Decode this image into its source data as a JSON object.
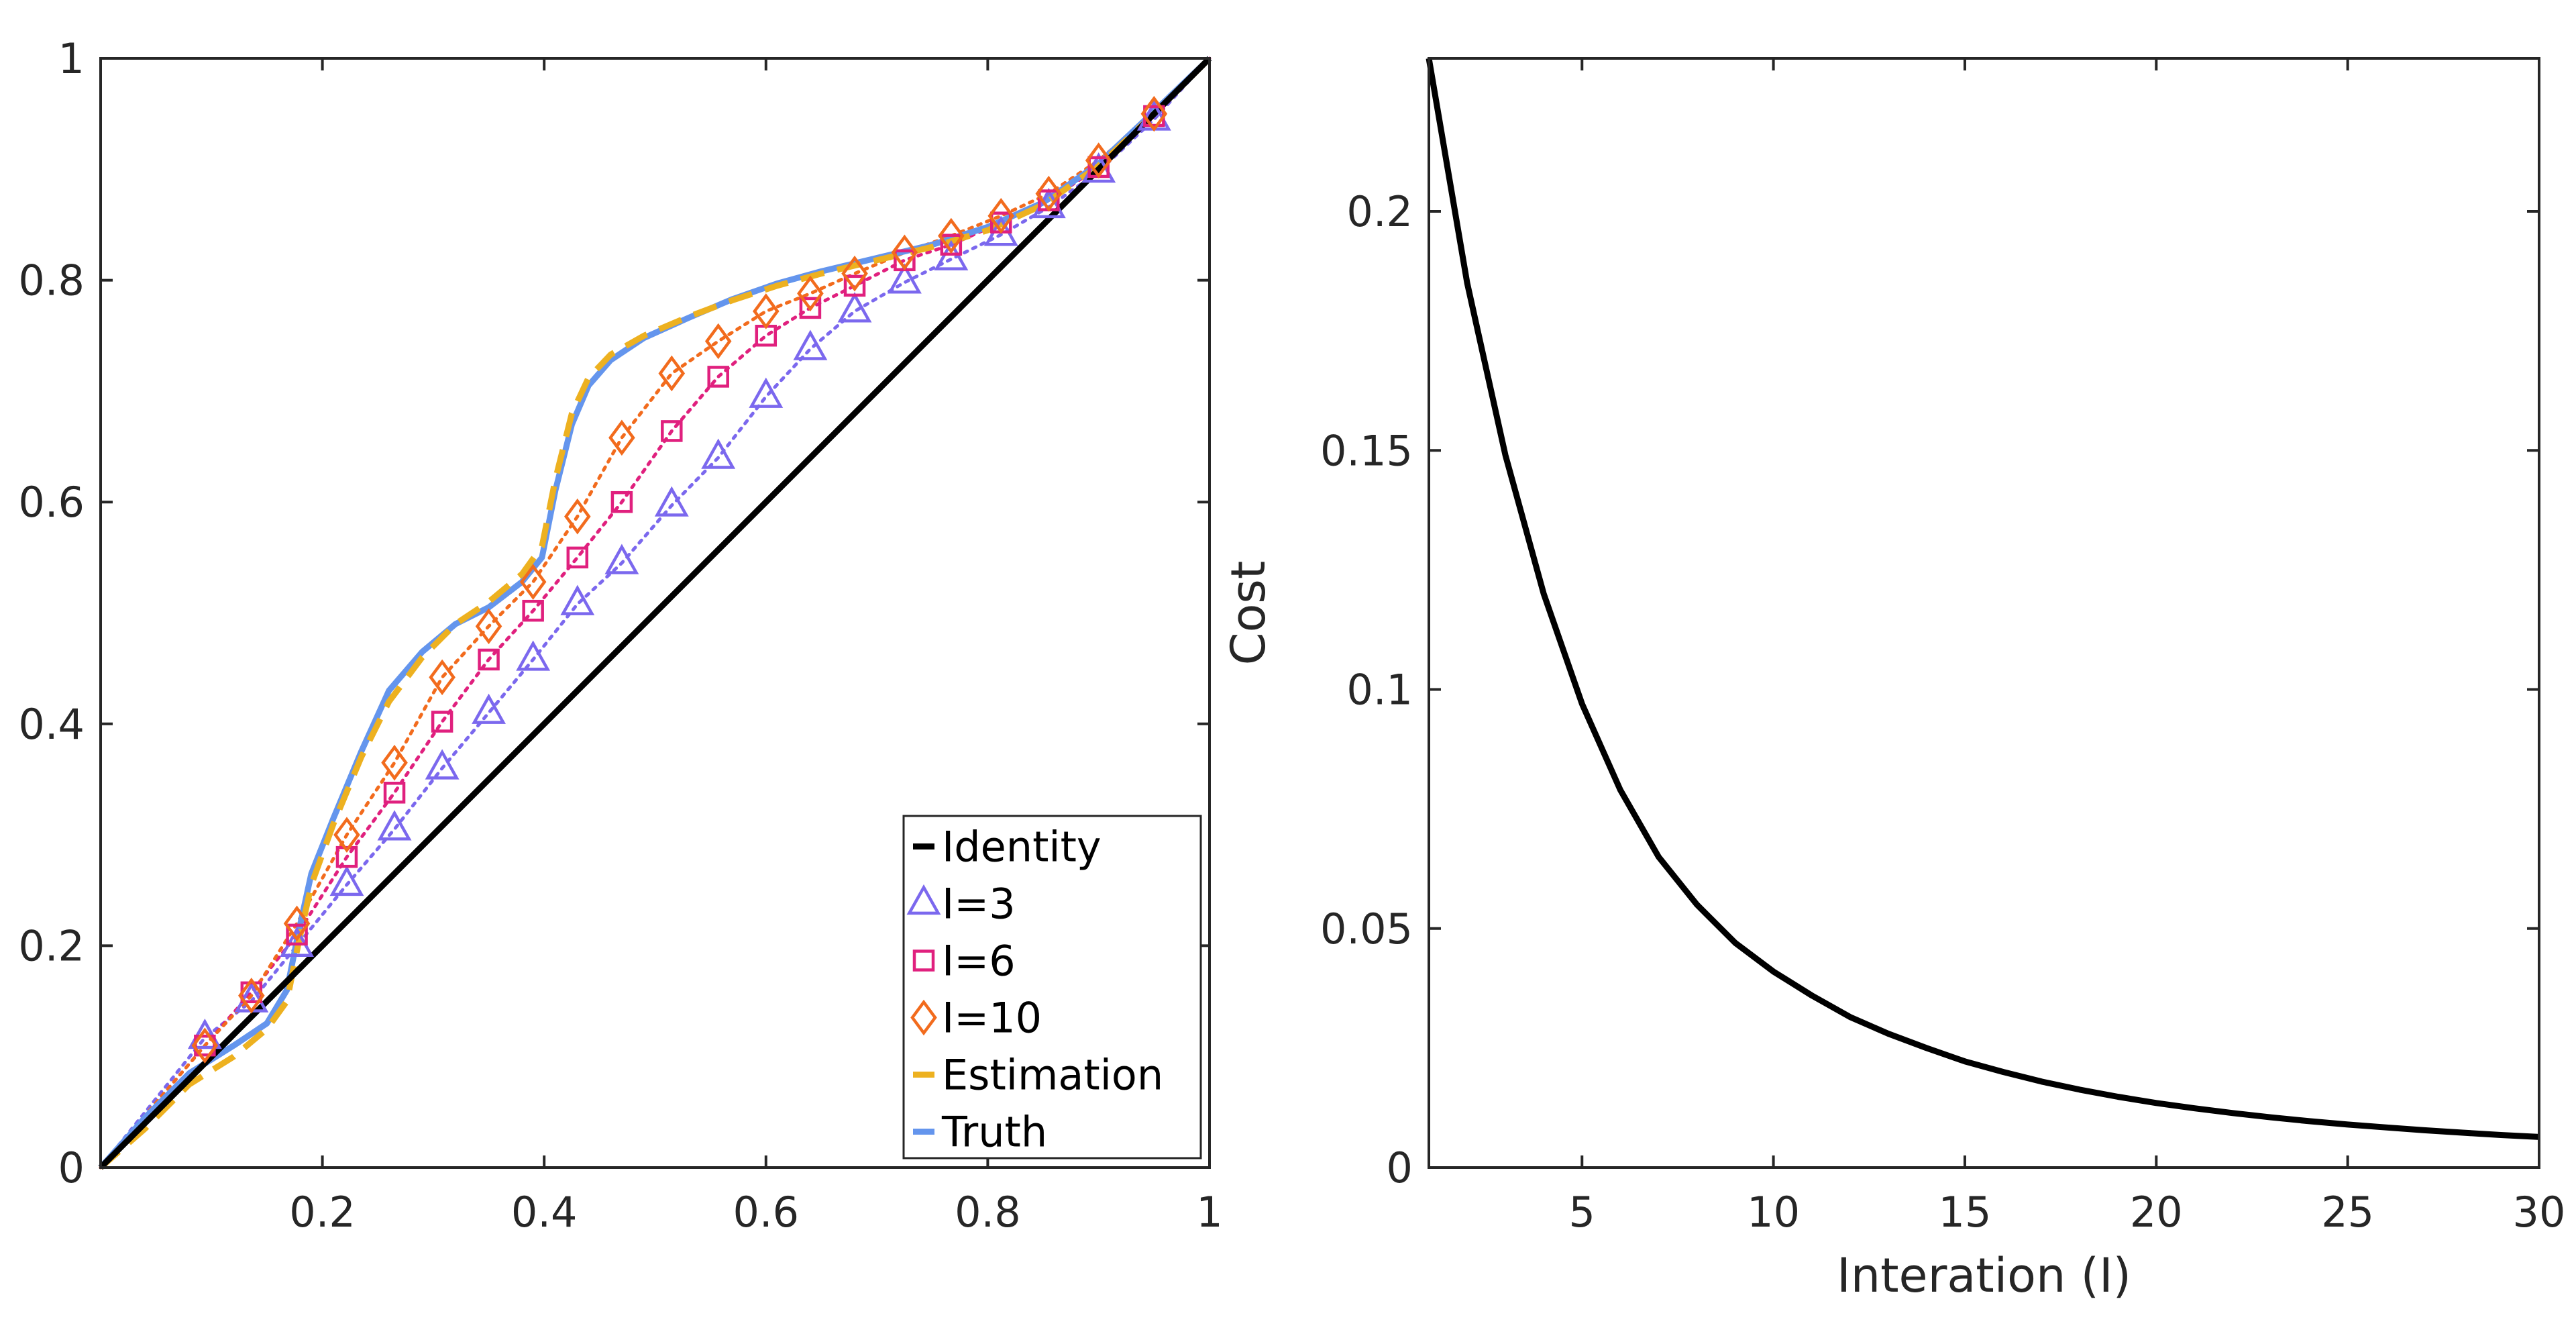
{
  "chart_data": [
    {
      "type": "line",
      "title": "",
      "xlabel": "",
      "ylabel": "",
      "xlim": [
        0,
        1
      ],
      "ylim": [
        0,
        1
      ],
      "x_ticks": [
        0.2,
        0.4,
        0.6,
        0.8,
        1
      ],
      "x_tick_labels": [
        "0.2",
        "0.4",
        "0.6",
        "0.8",
        "1"
      ],
      "y_ticks": [
        0,
        0.2,
        0.4,
        0.6,
        0.8,
        1
      ],
      "y_tick_labels": [
        "0",
        "0.2",
        "0.4",
        "0.6",
        "0.8",
        "1"
      ],
      "grid": false,
      "legend_position": "bottom-right",
      "series": [
        {
          "name": "Identity",
          "color": "#000000",
          "style": "solid",
          "marker": "none",
          "x": [
            0,
            1
          ],
          "y": [
            0,
            1
          ]
        },
        {
          "name": "I=3",
          "color": "#7B68EE",
          "style": "dotted",
          "marker": "triangle",
          "x": [
            0,
            0.094,
            0.136,
            0.177,
            0.222,
            0.265,
            0.308,
            0.35,
            0.39,
            0.43,
            0.47,
            0.515,
            0.557,
            0.6,
            0.64,
            0.68,
            0.725,
            0.767,
            0.812,
            0.855,
            0.9,
            0.95,
            1
          ],
          "y": [
            0,
            0.117,
            0.15,
            0.2,
            0.255,
            0.305,
            0.36,
            0.41,
            0.458,
            0.508,
            0.545,
            0.597,
            0.64,
            0.695,
            0.738,
            0.772,
            0.798,
            0.819,
            0.841,
            0.866,
            0.898,
            0.945,
            1
          ]
        },
        {
          "name": "I=6",
          "color": "#E0207E",
          "style": "dotted",
          "marker": "square",
          "x": [
            0,
            0.094,
            0.136,
            0.177,
            0.222,
            0.265,
            0.308,
            0.35,
            0.39,
            0.43,
            0.47,
            0.515,
            0.557,
            0.6,
            0.64,
            0.68,
            0.725,
            0.767,
            0.812,
            0.855,
            0.9,
            0.95,
            1
          ],
          "y": [
            0,
            0.11,
            0.158,
            0.21,
            0.28,
            0.338,
            0.402,
            0.458,
            0.502,
            0.55,
            0.6,
            0.664,
            0.713,
            0.75,
            0.775,
            0.795,
            0.818,
            0.832,
            0.852,
            0.872,
            0.902,
            0.948,
            1
          ]
        },
        {
          "name": "I=10",
          "color": "#F26B1D",
          "style": "dotted",
          "marker": "diamond",
          "x": [
            0,
            0.094,
            0.136,
            0.177,
            0.222,
            0.265,
            0.308,
            0.35,
            0.39,
            0.43,
            0.47,
            0.515,
            0.557,
            0.6,
            0.64,
            0.68,
            0.725,
            0.767,
            0.812,
            0.855,
            0.9,
            0.95,
            1
          ],
          "y": [
            0,
            0.11,
            0.155,
            0.22,
            0.3,
            0.365,
            0.442,
            0.488,
            0.528,
            0.587,
            0.658,
            0.716,
            0.745,
            0.772,
            0.788,
            0.806,
            0.825,
            0.84,
            0.858,
            0.878,
            0.908,
            0.95,
            1
          ]
        },
        {
          "name": "Estimation",
          "color": "#EDB120",
          "style": "dashed",
          "marker": "none",
          "x": [
            0,
            0.04,
            0.08,
            0.12,
            0.15,
            0.168,
            0.178,
            0.19,
            0.21,
            0.235,
            0.26,
            0.29,
            0.32,
            0.35,
            0.38,
            0.398,
            0.41,
            0.425,
            0.44,
            0.46,
            0.49,
            0.53,
            0.57,
            0.61,
            0.65,
            0.7,
            0.75,
            0.8,
            0.85,
            0.9,
            0.95,
            1
          ],
          "y": [
            0,
            0.035,
            0.075,
            0.1,
            0.125,
            0.15,
            0.2,
            0.255,
            0.31,
            0.37,
            0.42,
            0.46,
            0.49,
            0.51,
            0.535,
            0.56,
            0.62,
            0.68,
            0.712,
            0.733,
            0.75,
            0.767,
            0.782,
            0.795,
            0.806,
            0.818,
            0.83,
            0.845,
            0.868,
            0.903,
            0.95,
            1
          ]
        },
        {
          "name": "Truth",
          "color": "#6495ED",
          "style": "solid",
          "marker": "none",
          "x": [
            0,
            0.04,
            0.08,
            0.12,
            0.15,
            0.168,
            0.178,
            0.19,
            0.21,
            0.235,
            0.26,
            0.29,
            0.32,
            0.35,
            0.38,
            0.398,
            0.41,
            0.425,
            0.44,
            0.46,
            0.49,
            0.53,
            0.57,
            0.61,
            0.65,
            0.7,
            0.75,
            0.8,
            0.85,
            0.9,
            0.95,
            1
          ],
          "y": [
            0,
            0.045,
            0.085,
            0.11,
            0.13,
            0.16,
            0.21,
            0.265,
            0.315,
            0.375,
            0.43,
            0.465,
            0.49,
            0.505,
            0.528,
            0.55,
            0.61,
            0.67,
            0.705,
            0.728,
            0.748,
            0.766,
            0.783,
            0.797,
            0.808,
            0.82,
            0.832,
            0.848,
            0.87,
            0.905,
            0.952,
            1
          ]
        }
      ]
    },
    {
      "type": "line",
      "title": "",
      "xlabel": "Interation (I)",
      "ylabel": "Cost",
      "xlim": [
        1,
        30
      ],
      "ylim": [
        0,
        0.232
      ],
      "x_ticks": [
        5,
        10,
        15,
        20,
        25,
        30
      ],
      "x_tick_labels": [
        "5",
        "10",
        "15",
        "20",
        "25",
        "30"
      ],
      "y_ticks": [
        0,
        0.05,
        0.1,
        0.15,
        0.2
      ],
      "y_tick_labels": [
        "0",
        "0.05",
        "0.1",
        "0.15",
        "0.2"
      ],
      "grid": false,
      "series": [
        {
          "name": "Cost",
          "color": "#000000",
          "style": "solid",
          "x": [
            1,
            2,
            3,
            4,
            5,
            6,
            7,
            8,
            9,
            10,
            11,
            12,
            13,
            14,
            15,
            16,
            17,
            18,
            19,
            20,
            21,
            22,
            23,
            24,
            25,
            26,
            27,
            28,
            29,
            30
          ],
          "y": [
            0.232,
            0.185,
            0.149,
            0.12,
            0.097,
            0.079,
            0.065,
            0.055,
            0.047,
            0.041,
            0.036,
            0.0315,
            0.028,
            0.025,
            0.0222,
            0.02,
            0.018,
            0.0163,
            0.0148,
            0.0135,
            0.0124,
            0.0114,
            0.0105,
            0.0097,
            0.009,
            0.0084,
            0.0078,
            0.0073,
            0.0068,
            0.0064
          ]
        }
      ]
    }
  ]
}
